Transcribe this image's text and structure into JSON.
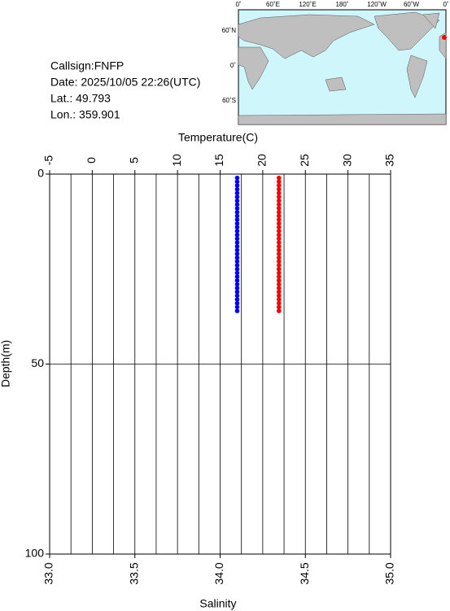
{
  "info": {
    "callsign": "Callsign:FNFP",
    "date": "Date:  2025/10/05 22:26(UTC)",
    "lat": "Lat.:  49.793",
    "lon": "Lon.:  359.901"
  },
  "map": {
    "lon_labels": [
      "0˚",
      "60˚E",
      "120˚E",
      "180˚",
      "120˚W",
      "60˚W",
      "0˚"
    ],
    "lat_labels": [
      "60˚N",
      "0˚",
      "60˚S"
    ]
  },
  "chart_data": {
    "type": "profile",
    "x_label": "Temperature(C)",
    "x2_label": "Salinity",
    "y_label": "Depth(m)",
    "xlim": [
      -5,
      35
    ],
    "xticks": [
      -5,
      0,
      5,
      10,
      15,
      20,
      25,
      30,
      35
    ],
    "xgrid": [
      -5,
      -2.5,
      0,
      2.5,
      5,
      7.5,
      10,
      12.5,
      15,
      17.5,
      20,
      22.5,
      25,
      27.5,
      30,
      32.5,
      35
    ],
    "x2lim": [
      33,
      35
    ],
    "x2ticks": [
      {
        "value": 33,
        "label": "33.0"
      },
      {
        "value": 33.5,
        "label": "33.5"
      },
      {
        "value": 34,
        "label": "34.0"
      },
      {
        "value": 34.5,
        "label": "34.5"
      },
      {
        "value": 35,
        "label": "35.0"
      }
    ],
    "ylim": [
      0,
      100
    ],
    "yticks": [
      0,
      50,
      100
    ],
    "y_inverted": true,
    "grid": true,
    "depth": [
      1,
      2,
      3,
      4,
      5,
      6,
      7,
      8,
      9,
      10,
      11,
      12,
      13,
      14,
      15,
      16,
      17,
      18,
      19,
      20,
      21,
      22,
      23,
      24,
      25,
      26,
      27,
      28,
      29,
      30,
      31,
      32,
      33,
      34,
      35,
      36
    ],
    "series": [
      {
        "axis": "x",
        "color": "#ff0000",
        "values": [
          21.9,
          21.9,
          21.9,
          21.9,
          21.9,
          21.9,
          21.9,
          21.9,
          21.9,
          21.9,
          21.9,
          21.9,
          21.9,
          21.9,
          21.9,
          21.9,
          21.9,
          21.9,
          21.9,
          21.9,
          21.9,
          21.9,
          21.9,
          21.9,
          21.9,
          21.9,
          21.9,
          21.9,
          21.9,
          21.9,
          21.9,
          21.9,
          21.9,
          21.9,
          21.9,
          21.9
        ]
      },
      {
        "axis": "x2",
        "color": "#0000ff",
        "values": [
          34.1,
          34.1,
          34.1,
          34.1,
          34.1,
          34.1,
          34.1,
          34.1,
          34.1,
          34.1,
          34.1,
          34.1,
          34.1,
          34.1,
          34.1,
          34.1,
          34.1,
          34.1,
          34.1,
          34.1,
          34.1,
          34.1,
          34.1,
          34.1,
          34.1,
          34.1,
          34.1,
          34.1,
          34.1,
          34.1,
          34.1,
          34.1,
          34.1,
          34.1,
          34.1,
          34.1
        ]
      }
    ]
  }
}
